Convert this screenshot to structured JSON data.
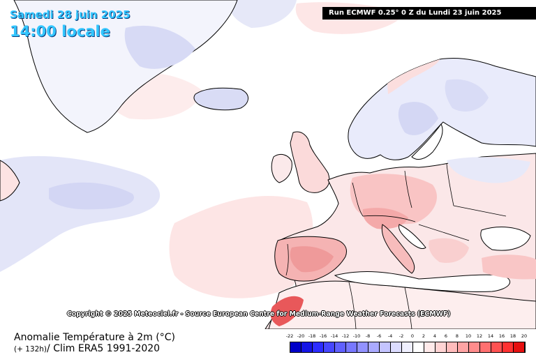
{
  "header": {
    "date": "Samedi 28 juin 2025",
    "time": "14:00 locale",
    "run_info": "Run ECMWF 0.25° 0 Z du Lundi 23 juin 2025"
  },
  "map": {
    "copyright": "Copyright © 2025 Meteociel.fr - Source European Centre for Medium-Range Weather Forecasts (ECMWF)",
    "colors": {
      "ocean": "#ffffff",
      "neutral": "#ffffff",
      "cool_light": "#dcdff7",
      "cool": "#c4c8f2",
      "warm_light": "#fde0e0",
      "warm": "#f9c0c0",
      "warm_strong": "#f29a9a",
      "hot": "#e95c5c",
      "coast": "#000000"
    }
  },
  "footer": {
    "title": "Anomalie Température à 2m (°C)",
    "lead": "(+ 132h)",
    "subtitle": "/ Clim ERA5 1991-2020"
  },
  "legend": {
    "labels": [
      "-22",
      "-20",
      "-18",
      "-16",
      "-14",
      "-12",
      "-10",
      "-8",
      "-6",
      "-4",
      "-2",
      "0",
      "2",
      "4",
      "6",
      "8",
      "10",
      "12",
      "14",
      "16",
      "18",
      "20"
    ],
    "colors": [
      "#0000c8",
      "#1414e6",
      "#2c2cff",
      "#4646ff",
      "#6060ff",
      "#7878ff",
      "#9292ff",
      "#aaaaff",
      "#c4c4ff",
      "#dcdcff",
      "#f0f0ff",
      "#ffffff",
      "#ffeaea",
      "#ffd4d4",
      "#ffbcbc",
      "#ffa4a4",
      "#ff8c8c",
      "#ff7070",
      "#ff5252",
      "#ff3232",
      "#e61010"
    ]
  }
}
